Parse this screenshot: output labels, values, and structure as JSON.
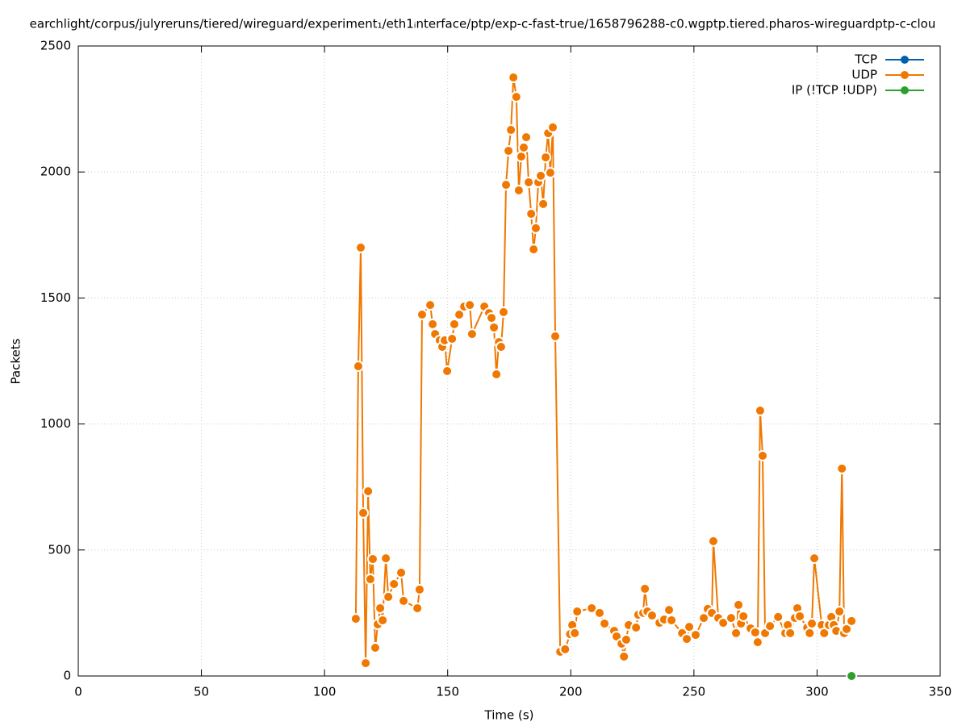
{
  "chart_data": {
    "type": "line",
    "title": "earchlight/corpus/julyreruns/tiered/wireguard/experiment₁/eth1ᵢnterface/ptp/exp-c-fast-true/1658796288-c0.wgptp.tiered.pharos-wireguardptp-c-clou",
    "xlabel": "Time (s)",
    "ylabel": "Packets",
    "xlim": [
      0,
      350
    ],
    "xticks": [
      0,
      50,
      100,
      150,
      200,
      250,
      300,
      350
    ],
    "ylim": [
      0,
      2500
    ],
    "yticks": [
      0,
      500,
      1000,
      1500,
      2000,
      2500
    ],
    "grid": true,
    "legend": "top-right",
    "series": [
      {
        "name": "TCP",
        "color": "#0060ad",
        "x": [],
        "values": []
      },
      {
        "name": "UDP",
        "color": "#f07800",
        "x": [
          112.7,
          113.7,
          114.7,
          115.7,
          116.7,
          117.7,
          118.6,
          119.6,
          120.6,
          121.6,
          122.6,
          123.6,
          124.9,
          125.9,
          128.2,
          131.1,
          132.1,
          137.7,
          138.6,
          139.6,
          142.9,
          143.9,
          144.9,
          146.8,
          147.8,
          148.8,
          149.8,
          151.8,
          152.7,
          154.7,
          156.7,
          159.0,
          159.9,
          164.9,
          166.8,
          167.8,
          168.8,
          169.8,
          170.8,
          171.7,
          172.7,
          173.7,
          174.7,
          175.7,
          176.7,
          177.9,
          178.9,
          179.9,
          180.9,
          181.9,
          182.9,
          183.9,
          184.9,
          185.8,
          186.8,
          187.8,
          188.8,
          189.8,
          190.8,
          191.7,
          192.7,
          193.7,
          195.7,
          197.7,
          199.7,
          200.6,
          201.6,
          202.6,
          208.5,
          211.7,
          213.7,
          217.6,
          218.6,
          220.6,
          221.6,
          222.5,
          223.5,
          226.5,
          227.4,
          229.4,
          230.1,
          231.1,
          233.0,
          236.0,
          237.9,
          239.9,
          240.9,
          245.2,
          247.1,
          248.1,
          250.7,
          254.0,
          255.6,
          257.3,
          257.9,
          259.9,
          261.9,
          265.1,
          267.1,
          268.1,
          269.1,
          270.1,
          273.0,
          274.9,
          275.9,
          276.9,
          277.9,
          278.9,
          280.9,
          284.2,
          287.1,
          288.1,
          289.1,
          291.0,
          292.0,
          293.0,
          296.0,
          297.0,
          297.9,
          298.9,
          301.9,
          302.9,
          304.8,
          305.8,
          306.8,
          307.8,
          309.1,
          310.1,
          311.0,
          312.0,
          314.0
        ],
        "values": [
          227,
          1229,
          1700,
          647,
          51,
          733,
          384,
          464,
          112,
          205,
          269,
          221,
          467,
          314,
          365,
          410,
          298,
          269,
          343,
          1434,
          1472,
          1396,
          1357,
          1332,
          1306,
          1332,
          1210,
          1338,
          1396,
          1434,
          1466,
          1472,
          1357,
          1466,
          1440,
          1421,
          1383,
          1197,
          1325,
          1306,
          1444,
          1949,
          2084,
          2167,
          2375,
          2298,
          1927,
          2061,
          2097,
          2138,
          1959,
          1834,
          1693,
          1777,
          1959,
          1985,
          1873,
          2058,
          2154,
          1997,
          2177,
          1348,
          96,
          106,
          166,
          202,
          170,
          256,
          269,
          250,
          208,
          179,
          157,
          128,
          77,
          144,
          202,
          192,
          243,
          250,
          346,
          256,
          240,
          211,
          224,
          262,
          221,
          170,
          147,
          195,
          163,
          230,
          266,
          250,
          535,
          230,
          211,
          230,
          170,
          282,
          208,
          237,
          189,
          173,
          134,
          1053,
          874,
          170,
          198,
          234,
          170,
          202,
          170,
          230,
          269,
          237,
          192,
          170,
          208,
          467,
          202,
          170,
          202,
          234,
          202,
          179,
          256,
          823,
          170,
          186,
          218
        ]
      },
      {
        "name": "IP (!TCP  !UDP)",
        "color": "#2ca02c",
        "x": [
          314
        ],
        "values": [
          0
        ]
      }
    ]
  }
}
